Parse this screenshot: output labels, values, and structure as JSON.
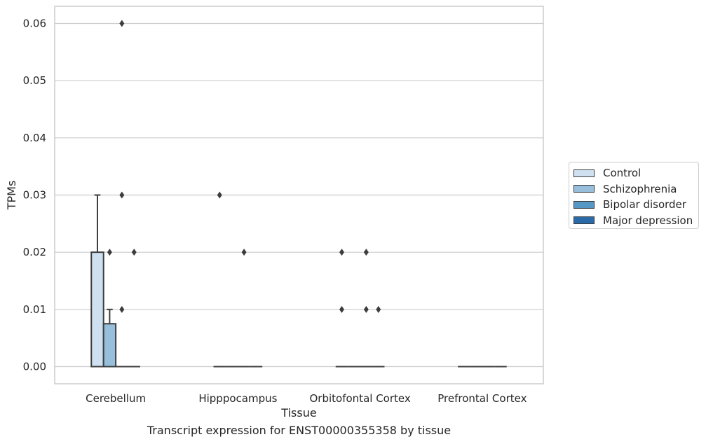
{
  "chart_data": {
    "type": "box",
    "title": "",
    "xlabel": "Tissue",
    "ylabel": "TPMs",
    "caption": "Transcript expression for ENST00000355358 by tissue",
    "ylim": [
      -0.003,
      0.063
    ],
    "yticks": [
      "0.00",
      "0.01",
      "0.02",
      "0.03",
      "0.04",
      "0.05",
      "0.06"
    ],
    "ytick_values": [
      0,
      0.01,
      0.02,
      0.03,
      0.04,
      0.05,
      0.06
    ],
    "grid": "horizontal",
    "legend_position": "right",
    "categories": [
      "Cerebellum",
      "Hipppocampus",
      "Orbitofontal Cortex",
      "Prefrontal Cortex"
    ],
    "series": [
      {
        "name": "Control",
        "color": "#cfe0f0",
        "boxes": [
          {
            "q1": 0,
            "median": 0,
            "q3": 0.02,
            "whisker_low": 0,
            "whisker_high": 0.03,
            "outliers": []
          },
          {
            "q1": 0,
            "median": 0,
            "q3": 0,
            "whisker_low": 0,
            "whisker_high": 0,
            "outliers": [
              0.03
            ]
          },
          {
            "q1": 0,
            "median": 0,
            "q3": 0,
            "whisker_low": 0,
            "whisker_high": 0,
            "outliers": [
              0.01,
              0.02
            ]
          },
          {
            "q1": 0,
            "median": 0,
            "q3": 0,
            "whisker_low": 0,
            "whisker_high": 0,
            "outliers": []
          }
        ]
      },
      {
        "name": "Schizophrenia",
        "color": "#97bfdb",
        "boxes": [
          {
            "q1": 0,
            "median": 0,
            "q3": 0.0075,
            "whisker_low": 0,
            "whisker_high": 0.01,
            "outliers": [
              0.02
            ]
          },
          {
            "q1": 0,
            "median": 0,
            "q3": 0,
            "whisker_low": 0,
            "whisker_high": 0,
            "outliers": []
          },
          {
            "q1": 0,
            "median": 0,
            "q3": 0,
            "whisker_low": 0,
            "whisker_high": 0,
            "outliers": []
          },
          {
            "q1": 0,
            "median": 0,
            "q3": 0,
            "whisker_low": 0,
            "whisker_high": 0,
            "outliers": []
          }
        ]
      },
      {
        "name": "Bipolar disorder",
        "color": "#5797c5",
        "boxes": [
          {
            "q1": 0,
            "median": 0,
            "q3": 0,
            "whisker_low": 0,
            "whisker_high": 0,
            "outliers": [
              0.01,
              0.03,
              0.06
            ]
          },
          {
            "q1": 0,
            "median": 0,
            "q3": 0,
            "whisker_low": 0,
            "whisker_high": 0,
            "outliers": [
              0.02
            ]
          },
          {
            "q1": 0,
            "median": 0,
            "q3": 0,
            "whisker_low": 0,
            "whisker_high": 0,
            "outliers": [
              0.01,
              0.02
            ]
          },
          {
            "q1": 0,
            "median": 0,
            "q3": 0,
            "whisker_low": 0,
            "whisker_high": 0,
            "outliers": []
          }
        ]
      },
      {
        "name": "Major depression",
        "color": "#2b6aa8",
        "boxes": [
          {
            "q1": 0,
            "median": 0,
            "q3": 0,
            "whisker_low": 0,
            "whisker_high": 0,
            "outliers": [
              0.02
            ]
          },
          {
            "q1": 0,
            "median": 0,
            "q3": 0,
            "whisker_low": 0,
            "whisker_high": 0,
            "outliers": []
          },
          {
            "q1": 0,
            "median": 0,
            "q3": 0,
            "whisker_low": 0,
            "whisker_high": 0,
            "outliers": [
              0.01
            ]
          },
          {
            "q1": 0,
            "median": 0,
            "q3": 0,
            "whisker_low": 0,
            "whisker_high": 0,
            "outliers": []
          }
        ]
      }
    ]
  }
}
